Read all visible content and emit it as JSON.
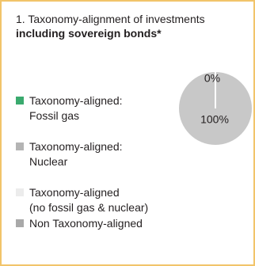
{
  "chart_data": {
    "type": "pie",
    "title": "1. Taxonomy-alignment of investments",
    "title_emphasis": "including sovereign bonds*",
    "legend": [
      {
        "name": "Taxonomy-aligned:\nFossil gas",
        "color": "#3aaa6e"
      },
      {
        "name": "Taxonomy-aligned:\nNuclear",
        "color": "#b4b4b4"
      },
      {
        "name": "Taxonomy-aligned\n(no fossil gas & nuclear)",
        "color": "#ececec"
      },
      {
        "name": "Non Taxonomy-aligned",
        "color": "#a9a9a9"
      }
    ],
    "values": [
      0,
      100
    ],
    "value_labels": [
      "0%",
      "100%"
    ],
    "colors": [
      "#ffffff",
      "#c8c8c8"
    ]
  }
}
